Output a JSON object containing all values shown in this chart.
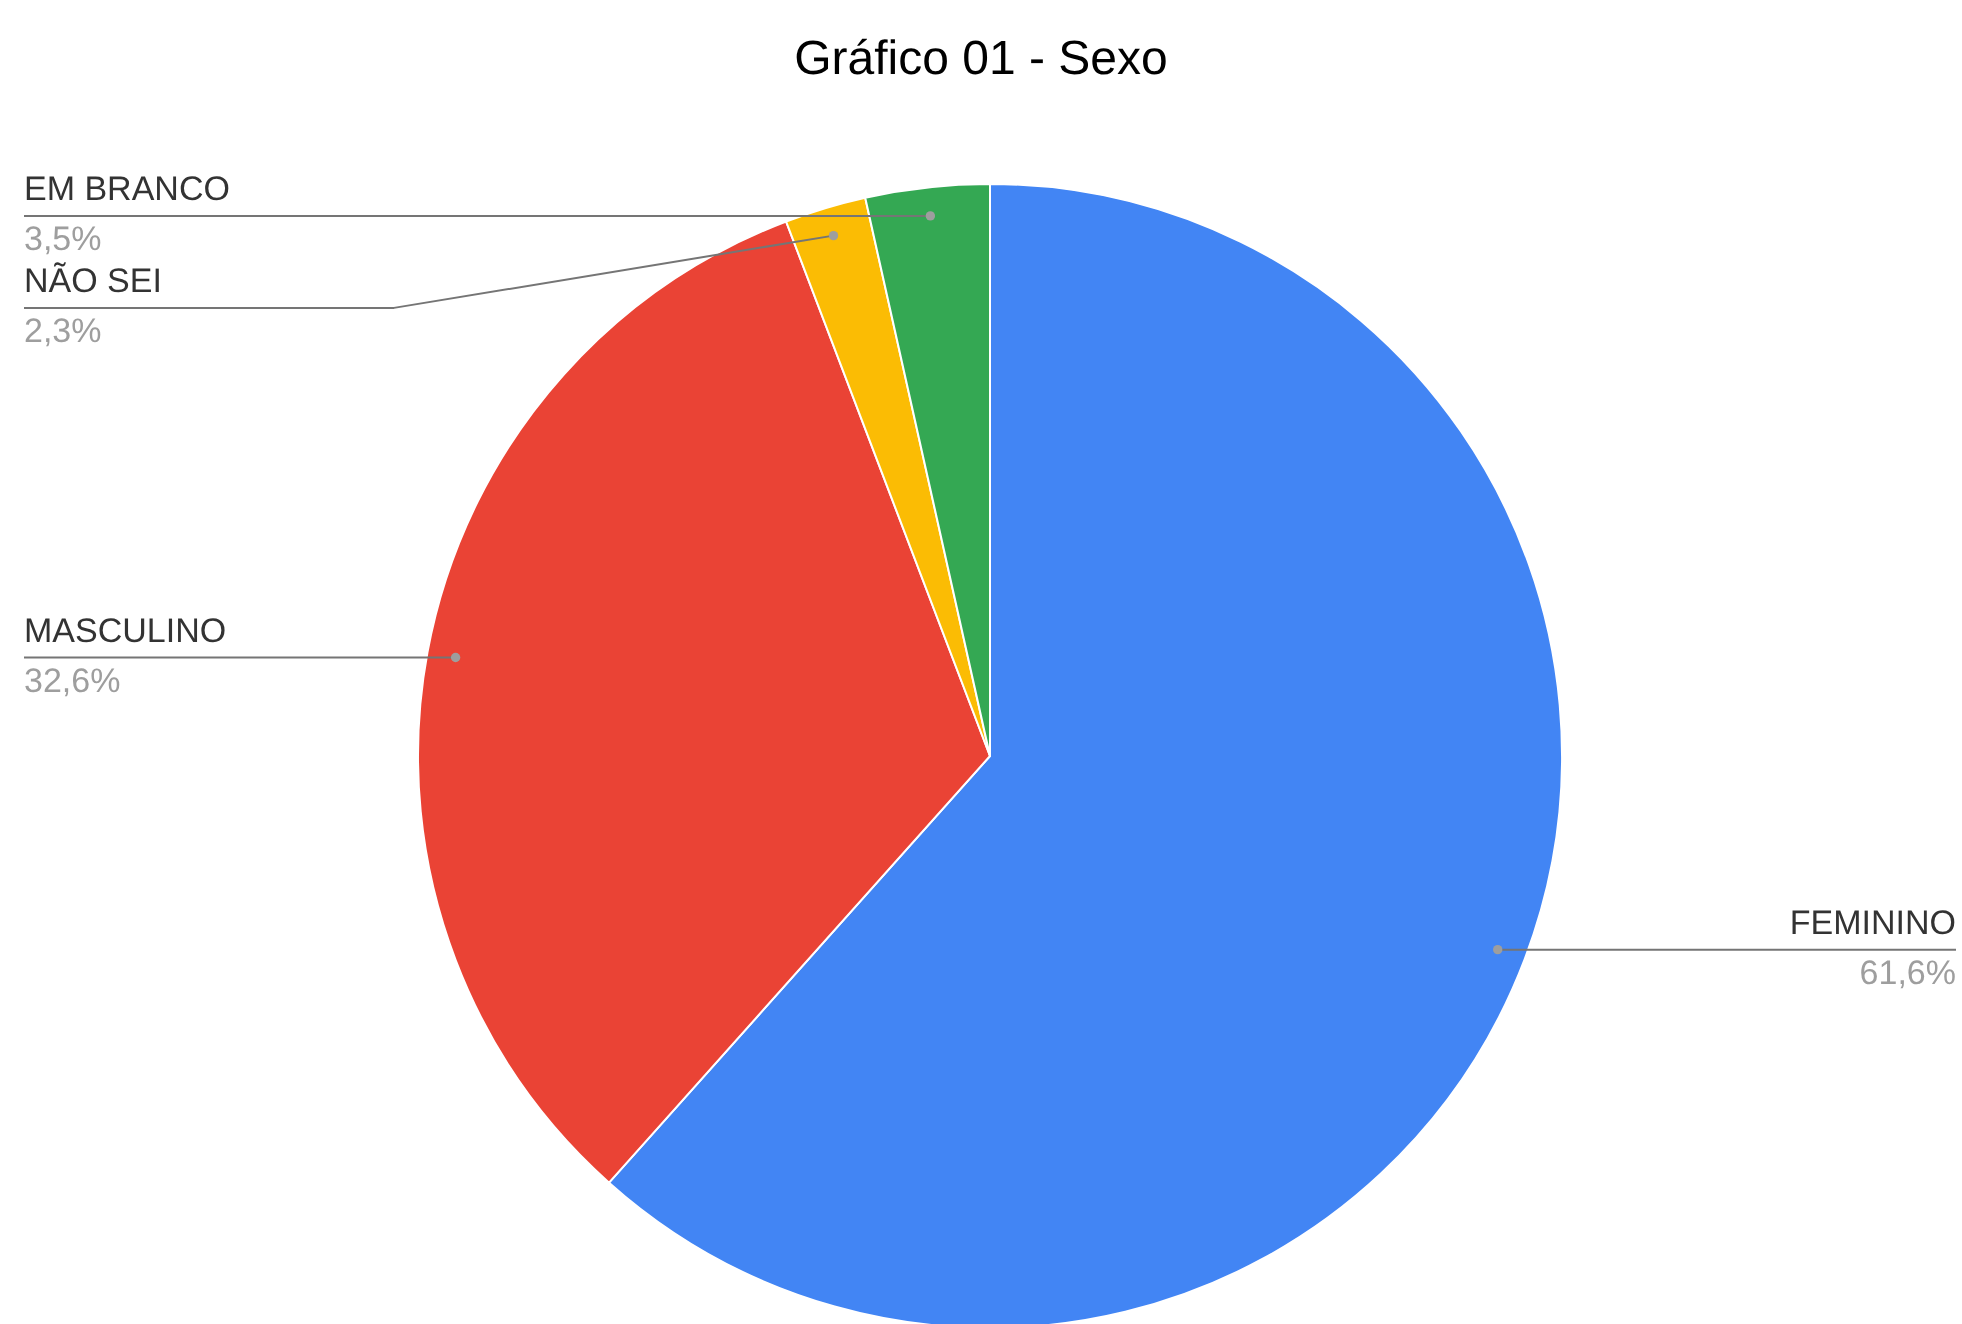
{
  "chart_data": {
    "type": "pie",
    "title": "Gráfico 01 - Sexo",
    "categories": [
      "FEMININO",
      "MASCULINO",
      "NÃO SEI",
      "EM BRANCO"
    ],
    "values": [
      61.6,
      32.6,
      2.3,
      3.5
    ],
    "value_labels": [
      "61,6%",
      "32,6%",
      "2,3%",
      "3,5%"
    ],
    "colors": [
      "#4285f4",
      "#ea4335",
      "#fbbc04",
      "#34a853"
    ]
  }
}
